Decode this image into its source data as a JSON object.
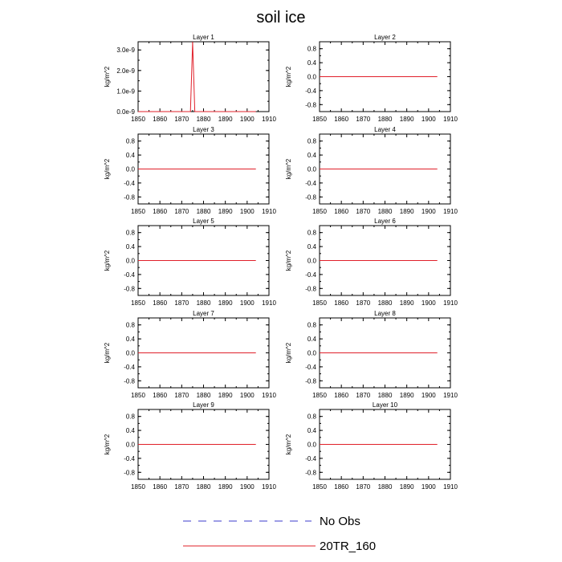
{
  "figure_title": "soil ice",
  "legend": [
    {
      "label": "No Obs",
      "color": "#3b3bcc",
      "style": "dashed"
    },
    {
      "label": "20TR_160",
      "color": "#e0202a",
      "style": "solid"
    }
  ],
  "chart_data": [
    {
      "type": "line",
      "title": "Layer 1",
      "ylabel": "kg/m^2",
      "xlim": [
        1850,
        1910
      ],
      "ylim": [
        0,
        3.4e-09
      ],
      "xticks": [
        "1850",
        "1860",
        "1870",
        "1880",
        "1890",
        "1900",
        "1910"
      ],
      "yticks": [
        {
          "value": 0,
          "label": "0.0e-9"
        },
        {
          "value": 1e-09,
          "label": "1.0e-9"
        },
        {
          "value": 2e-09,
          "label": "2.0e-9"
        },
        {
          "value": 3e-09,
          "label": "3.0e-9"
        }
      ],
      "series": [
        {
          "name": "20TR_160",
          "color": "#e0202a",
          "x": [
            1850,
            1874,
            1875,
            1876,
            1904
          ],
          "y": [
            0,
            0,
            3.4e-09,
            0,
            0
          ]
        }
      ]
    },
    {
      "type": "line",
      "title": "Layer 2",
      "ylabel": "kg/m^2",
      "xlim": [
        1850,
        1910
      ],
      "ylim": [
        -1,
        1
      ],
      "xticks": [
        "1850",
        "1860",
        "1870",
        "1880",
        "1890",
        "1900",
        "1910"
      ],
      "yticks": [
        {
          "value": 0.8,
          "label": "0.8"
        },
        {
          "value": 0.4,
          "label": "0.4"
        },
        {
          "value": 0,
          "label": "0.0"
        },
        {
          "value": -0.4,
          "label": "-0.4"
        },
        {
          "value": -0.8,
          "label": "-0.8"
        }
      ],
      "series": [
        {
          "name": "20TR_160",
          "color": "#e0202a",
          "x": [
            1850,
            1904
          ],
          "y": [
            0,
            0
          ]
        }
      ]
    },
    {
      "type": "line",
      "title": "Layer 3",
      "ylabel": "kg/m^2",
      "xlim": [
        1850,
        1910
      ],
      "ylim": [
        -1,
        1
      ],
      "xticks": [
        "1850",
        "1860",
        "1870",
        "1880",
        "1890",
        "1900",
        "1910"
      ],
      "yticks": [
        {
          "value": 0.8,
          "label": "0.8"
        },
        {
          "value": 0.4,
          "label": "0.4"
        },
        {
          "value": 0,
          "label": "0.0"
        },
        {
          "value": -0.4,
          "label": "-0.4"
        },
        {
          "value": -0.8,
          "label": "-0.8"
        }
      ],
      "series": [
        {
          "name": "20TR_160",
          "color": "#e0202a",
          "x": [
            1850,
            1904
          ],
          "y": [
            0,
            0
          ]
        }
      ]
    },
    {
      "type": "line",
      "title": "Layer 4",
      "ylabel": "kg/m^2",
      "xlim": [
        1850,
        1910
      ],
      "ylim": [
        -1,
        1
      ],
      "xticks": [
        "1850",
        "1860",
        "1870",
        "1880",
        "1890",
        "1900",
        "1910"
      ],
      "yticks": [
        {
          "value": 0.8,
          "label": "0.8"
        },
        {
          "value": 0.4,
          "label": "0.4"
        },
        {
          "value": 0,
          "label": "0.0"
        },
        {
          "value": -0.4,
          "label": "-0.4"
        },
        {
          "value": -0.8,
          "label": "-0.8"
        }
      ],
      "series": [
        {
          "name": "20TR_160",
          "color": "#e0202a",
          "x": [
            1850,
            1904
          ],
          "y": [
            0,
            0
          ]
        }
      ]
    },
    {
      "type": "line",
      "title": "Layer 5",
      "ylabel": "kg/m^2",
      "xlim": [
        1850,
        1910
      ],
      "ylim": [
        -1,
        1
      ],
      "xticks": [
        "1850",
        "1860",
        "1870",
        "1880",
        "1890",
        "1900",
        "1910"
      ],
      "yticks": [
        {
          "value": 0.8,
          "label": "0.8"
        },
        {
          "value": 0.4,
          "label": "0.4"
        },
        {
          "value": 0,
          "label": "0.0"
        },
        {
          "value": -0.4,
          "label": "-0.4"
        },
        {
          "value": -0.8,
          "label": "-0.8"
        }
      ],
      "series": [
        {
          "name": "20TR_160",
          "color": "#e0202a",
          "x": [
            1850,
            1904
          ],
          "y": [
            0,
            0
          ]
        }
      ]
    },
    {
      "type": "line",
      "title": "Layer 6",
      "ylabel": "kg/m^2",
      "xlim": [
        1850,
        1910
      ],
      "ylim": [
        -1,
        1
      ],
      "xticks": [
        "1850",
        "1860",
        "1870",
        "1880",
        "1890",
        "1900",
        "1910"
      ],
      "yticks": [
        {
          "value": 0.8,
          "label": "0.8"
        },
        {
          "value": 0.4,
          "label": "0.4"
        },
        {
          "value": 0,
          "label": "0.0"
        },
        {
          "value": -0.4,
          "label": "-0.4"
        },
        {
          "value": -0.8,
          "label": "-0.8"
        }
      ],
      "series": [
        {
          "name": "20TR_160",
          "color": "#e0202a",
          "x": [
            1850,
            1904
          ],
          "y": [
            0,
            0
          ]
        }
      ]
    },
    {
      "type": "line",
      "title": "Layer 7",
      "ylabel": "kg/m^2",
      "xlim": [
        1850,
        1910
      ],
      "ylim": [
        -1,
        1
      ],
      "xticks": [
        "1850",
        "1860",
        "1870",
        "1880",
        "1890",
        "1900",
        "1910"
      ],
      "yticks": [
        {
          "value": 0.8,
          "label": "0.8"
        },
        {
          "value": 0.4,
          "label": "0.4"
        },
        {
          "value": 0,
          "label": "0.0"
        },
        {
          "value": -0.4,
          "label": "-0.4"
        },
        {
          "value": -0.8,
          "label": "-0.8"
        }
      ],
      "series": [
        {
          "name": "20TR_160",
          "color": "#e0202a",
          "x": [
            1850,
            1904
          ],
          "y": [
            0,
            0
          ]
        }
      ]
    },
    {
      "type": "line",
      "title": "Layer 8",
      "ylabel": "kg/m^2",
      "xlim": [
        1850,
        1910
      ],
      "ylim": [
        -1,
        1
      ],
      "xticks": [
        "1850",
        "1860",
        "1870",
        "1880",
        "1890",
        "1900",
        "1910"
      ],
      "yticks": [
        {
          "value": 0.8,
          "label": "0.8"
        },
        {
          "value": 0.4,
          "label": "0.4"
        },
        {
          "value": 0,
          "label": "0.0"
        },
        {
          "value": -0.4,
          "label": "-0.4"
        },
        {
          "value": -0.8,
          "label": "-0.8"
        }
      ],
      "series": [
        {
          "name": "20TR_160",
          "color": "#e0202a",
          "x": [
            1850,
            1904
          ],
          "y": [
            0,
            0
          ]
        }
      ]
    },
    {
      "type": "line",
      "title": "Layer 9",
      "ylabel": "kg/m^2",
      "xlim": [
        1850,
        1910
      ],
      "ylim": [
        -1,
        1
      ],
      "xticks": [
        "1850",
        "1860",
        "1870",
        "1880",
        "1890",
        "1900",
        "1910"
      ],
      "yticks": [
        {
          "value": 0.8,
          "label": "0.8"
        },
        {
          "value": 0.4,
          "label": "0.4"
        },
        {
          "value": 0,
          "label": "0.0"
        },
        {
          "value": -0.4,
          "label": "-0.4"
        },
        {
          "value": -0.8,
          "label": "-0.8"
        }
      ],
      "series": [
        {
          "name": "20TR_160",
          "color": "#e0202a",
          "x": [
            1850,
            1904
          ],
          "y": [
            0,
            0
          ]
        }
      ]
    },
    {
      "type": "line",
      "title": "Layer 10",
      "ylabel": "kg/m^2",
      "xlim": [
        1850,
        1910
      ],
      "ylim": [
        -1,
        1
      ],
      "xticks": [
        "1850",
        "1860",
        "1870",
        "1880",
        "1890",
        "1900",
        "1910"
      ],
      "yticks": [
        {
          "value": 0.8,
          "label": "0.8"
        },
        {
          "value": 0.4,
          "label": "0.4"
        },
        {
          "value": 0,
          "label": "0.0"
        },
        {
          "value": -0.4,
          "label": "-0.4"
        },
        {
          "value": -0.8,
          "label": "-0.8"
        }
      ],
      "series": [
        {
          "name": "20TR_160",
          "color": "#e0202a",
          "x": [
            1850,
            1904
          ],
          "y": [
            0,
            0
          ]
        }
      ]
    }
  ]
}
